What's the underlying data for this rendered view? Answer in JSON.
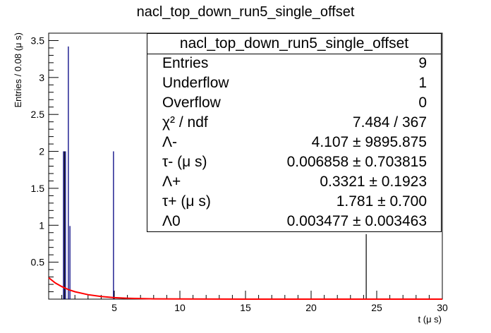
{
  "chart_data": {
    "type": "histogram",
    "title": "nacl_top_down_run5_single_offset",
    "xlabel": "t (μ s)",
    "ylabel": "Entries / 0.08 (μ s)",
    "xlim": [
      0,
      30
    ],
    "ylim": [
      0,
      3.6
    ],
    "x_ticks": [
      "5",
      "10",
      "15",
      "20",
      "25",
      "30"
    ],
    "y_ticks": [
      "0.5",
      "1",
      "1.5",
      "2",
      "2.5",
      "3",
      "3.5"
    ],
    "data_series": {
      "name": "data",
      "color": "#000080",
      "points": [
        {
          "x": 1.13,
          "y": 2
        },
        {
          "x": 1.28,
          "y": 2
        },
        {
          "x": 1.5,
          "y": 3.42
        },
        {
          "x": 1.62,
          "y": 0.99
        },
        {
          "x": 4.94,
          "y": 2
        }
      ]
    },
    "black_bars": [
      {
        "x": 1.2,
        "y": 2.0
      },
      {
        "x": 24.2,
        "y": 0.88
      }
    ],
    "fit_curve": {
      "name": "fit",
      "color": "#ff0000",
      "function": "exponential decay",
      "x": [
        0,
        0.5,
        1,
        1.5,
        2,
        3,
        4,
        5,
        6,
        8,
        10,
        15,
        20,
        25,
        30
      ],
      "y": [
        0.29,
        0.22,
        0.17,
        0.13,
        0.1,
        0.06,
        0.035,
        0.02,
        0.012,
        0.004,
        0.0015,
        0.0002,
        0.0,
        0.0,
        0.0
      ]
    },
    "stats_box": {
      "title": "nacl_top_down_run5_single_offset",
      "entries_label": "Entries",
      "entries": "9",
      "underflow_label": "Underflow",
      "underflow": "1",
      "overflow_label": "Overflow",
      "overflow": "0",
      "chi2_label": "χ² / ndf",
      "chi2": "7.484 / 367",
      "lm_label": "Λ-",
      "lm": "4.107 ± 9895.875",
      "taum_label": "τ- (μ s)",
      "taum": "0.006858 ± 0.703815",
      "lp_label": "Λ+",
      "lp": "0.3321 ± 0.1923",
      "taup_label": "τ+ (μ s)",
      "taup": "1.781 ± 0.700",
      "l0_label": "Λ0",
      "l0": "0.003477 ± 0.003463"
    }
  }
}
